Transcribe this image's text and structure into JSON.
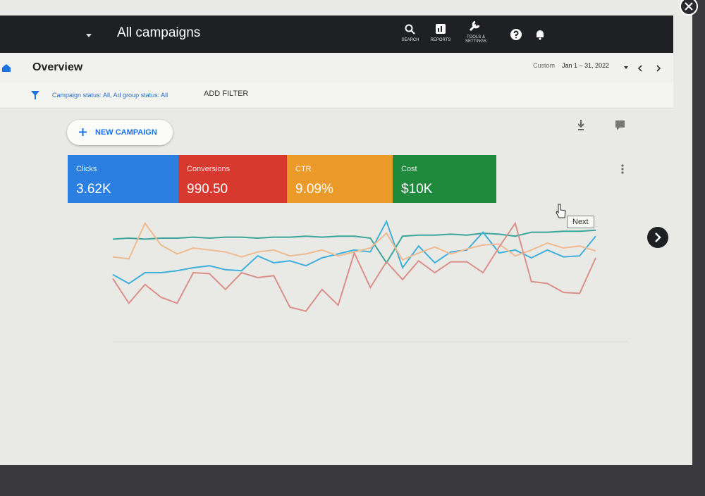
{
  "header": {
    "title": "All campaigns",
    "nav": [
      "SEARCH",
      "REPORTS",
      "TOOLS & SETTINGS"
    ]
  },
  "overview": {
    "title": "Overview",
    "date_label": "Custom",
    "date_range": "Jan 1 – 31, 2022"
  },
  "filter": {
    "text": "Campaign status: All, Ad group status: All",
    "action": "ADD FILTER"
  },
  "new_campaign": "NEW CAMPAIGN",
  "tooltip": "Next",
  "chart": {
    "ylim": [
      0,
      100
    ]
  },
  "metrics": [
    {
      "name": "Clicks",
      "value": "3.62K",
      "color": "#2a7fe0",
      "line_color": "#3fb0dc",
      "values": [
        43,
        34,
        45,
        45,
        47,
        50,
        52,
        48,
        47,
        62,
        55,
        57,
        52,
        60,
        64,
        68,
        66,
        97,
        50,
        72,
        55,
        66,
        68,
        86,
        65,
        68,
        60,
        68,
        61,
        62,
        82
      ]
    },
    {
      "name": "Conversions",
      "value": "990.50",
      "color": "#d8392f",
      "line_color": "#d9908a",
      "values": [
        39,
        14,
        33,
        20,
        14,
        45,
        44,
        28,
        45,
        40,
        42,
        10,
        6,
        28,
        12,
        65,
        30,
        56,
        38,
        57,
        45,
        56,
        56,
        45,
        71,
        95,
        36,
        34,
        25,
        24,
        60
      ]
    },
    {
      "name": "CTR",
      "value": "9.09%",
      "color": "#eb9a2a",
      "line_color": "#eebb90",
      "values": [
        61,
        59,
        95,
        73,
        64,
        70,
        68,
        66,
        61,
        66,
        68,
        62,
        64,
        68,
        62,
        66,
        70,
        85,
        58,
        65,
        71,
        64,
        69,
        73,
        74,
        62,
        68,
        75,
        70,
        72,
        67
      ]
    },
    {
      "name": "Cost",
      "value": "$10K",
      "color": "#1f8a3c",
      "line_color": "#3aa59a",
      "values": [
        79,
        80,
        79,
        80,
        80,
        81,
        80,
        81,
        81,
        80,
        81,
        81,
        82,
        81,
        82,
        82,
        80,
        55,
        82,
        83,
        83,
        84,
        83,
        85,
        84,
        82,
        86,
        86,
        87,
        87,
        88
      ]
    }
  ]
}
